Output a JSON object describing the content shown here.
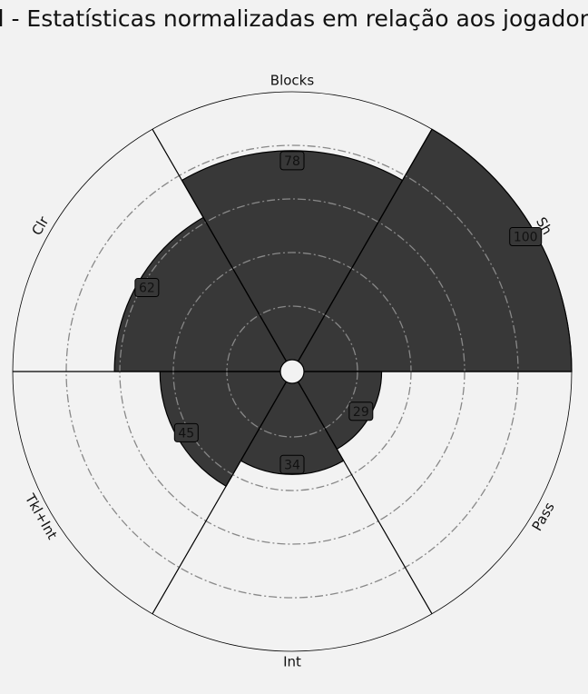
{
  "chart_data": {
    "type": "radar",
    "subtype": "polar-bar",
    "title": "Gil - Estatísticas normalizadas em relação aos jogadores",
    "categories": [
      "Sh",
      "Blocks",
      "Clr",
      "Tkl+Int",
      "Int",
      "Pass"
    ],
    "values": [
      100,
      78,
      62,
      45,
      34,
      29
    ],
    "value_labels": [
      "100",
      "78",
      "62",
      "45",
      "34",
      "29"
    ],
    "rlim": [
      0,
      100
    ],
    "grid_rings": [
      20,
      40,
      60,
      80
    ],
    "grid": true,
    "legend": "none",
    "colors": {
      "background": "#f2f2f2",
      "bar": "#383838",
      "bar_edge": "#000000",
      "grid": "#888888",
      "label_box": "#383838"
    }
  }
}
